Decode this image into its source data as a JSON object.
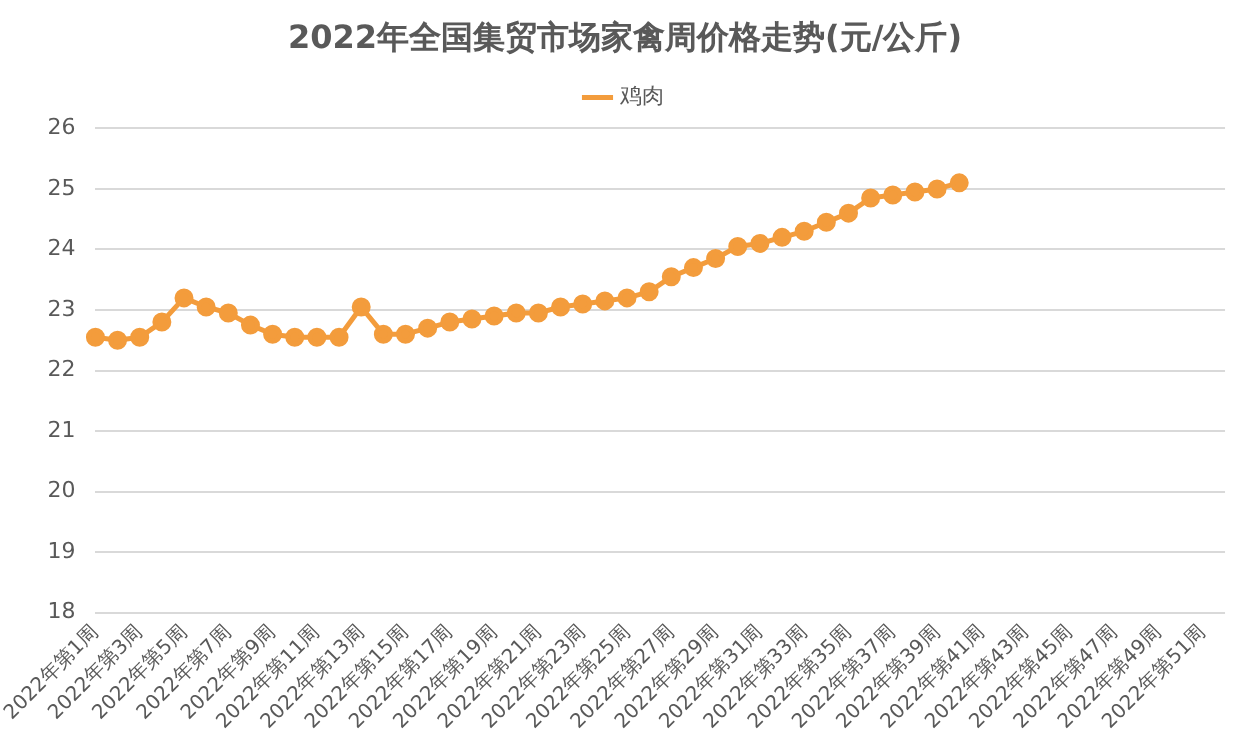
{
  "chart_data": {
    "type": "line",
    "title": "2022年全国集贸市场家禽周价格走势(元/公斤)",
    "categories": [
      "2022年第1周",
      null,
      "2022年第3周",
      null,
      "2022年第5周",
      null,
      "2022年第7周",
      null,
      "2022年第9周",
      null,
      "2022年第11周",
      null,
      "2022年第13周",
      null,
      "2022年第15周",
      null,
      "2022年第17周",
      null,
      "2022年第19周",
      null,
      "2022年第21周",
      null,
      "2022年第23周",
      null,
      "2022年第25周",
      null,
      "2022年第27周",
      null,
      "2022年第29周",
      null,
      "2022年第31周",
      null,
      "2022年第33周",
      null,
      "2022年第35周",
      null,
      "2022年第37周",
      null,
      "2022年第39周",
      null,
      "2022年第41周",
      null,
      "2022年第43周",
      null,
      "2022年第45周",
      null,
      "2022年第47周",
      null,
      "2022年第49周",
      null,
      "2022年第51周",
      null
    ],
    "series": [
      {
        "name": "鸡肉",
        "color": "#f39c3c",
        "values": [
          22.55,
          22.5,
          22.55,
          22.8,
          23.2,
          23.05,
          22.95,
          22.75,
          22.6,
          22.55,
          22.55,
          22.55,
          23.05,
          22.6,
          22.6,
          22.7,
          22.8,
          22.85,
          22.9,
          22.95,
          22.95,
          23.05,
          23.1,
          23.15,
          23.2,
          23.3,
          23.55,
          23.7,
          23.85,
          24.05,
          24.1,
          24.2,
          24.3,
          24.45,
          24.6,
          24.85,
          24.9,
          24.95,
          25.0,
          25.1,
          null,
          null,
          null,
          null,
          null,
          null,
          null,
          null,
          null,
          null,
          null,
          null
        ]
      }
    ],
    "ylim": [
      18,
      26
    ],
    "yticks": [
      18,
      19,
      20,
      21,
      22,
      23,
      24,
      25,
      26
    ],
    "grid": "y",
    "legend": "top",
    "marker": "circle",
    "line_style": "solid"
  }
}
